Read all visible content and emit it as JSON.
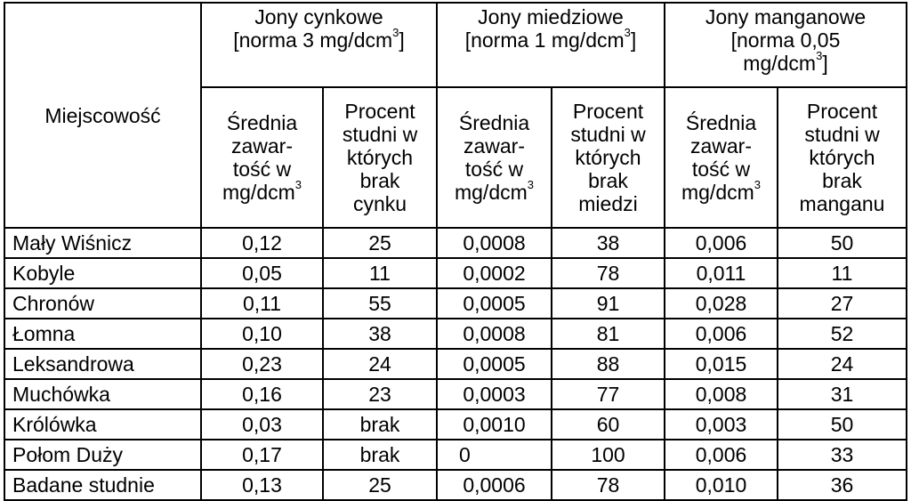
{
  "table": {
    "corner_header": "Miejscowość",
    "groups": [
      {
        "lines": [
          {
            "text": "Jony cynkowe"
          },
          {
            "text": "[norma 3 mg/dcm",
            "sup": "3",
            "after": "]"
          }
        ]
      },
      {
        "lines": [
          {
            "text": "Jony miedziowe"
          },
          {
            "text": "[norma 1 mg/dcm",
            "sup": "3",
            "after": "]"
          }
        ]
      },
      {
        "lines": [
          {
            "text": "Jony manganowe"
          },
          {
            "text": "[norma 0,05"
          },
          {
            "text": "mg/dcm",
            "sup": "3",
            "after": "]"
          }
        ]
      }
    ],
    "subheaders": [
      {
        "lines": [
          {
            "text": "Średnia"
          },
          {
            "text": "zawar-"
          },
          {
            "text": "tość w"
          },
          {
            "text": "mg/dcm",
            "sup": "3"
          }
        ]
      },
      {
        "lines": [
          {
            "text": "Procent"
          },
          {
            "text": "studni w"
          },
          {
            "text": "których"
          },
          {
            "text": "brak"
          },
          {
            "text": "cynku"
          }
        ]
      },
      {
        "lines": [
          {
            "text": "Średnia"
          },
          {
            "text": "zawar-"
          },
          {
            "text": "tość w"
          },
          {
            "text": "mg/dcm",
            "sup": "3"
          }
        ]
      },
      {
        "lines": [
          {
            "text": "Procent"
          },
          {
            "text": "studni w"
          },
          {
            "text": "których"
          },
          {
            "text": "brak"
          },
          {
            "text": "miedzi"
          }
        ]
      },
      {
        "lines": [
          {
            "text": "Średnia"
          },
          {
            "text": "zawar-"
          },
          {
            "text": "tość w"
          },
          {
            "text": "mg/dcm",
            "sup": "3"
          }
        ]
      },
      {
        "lines": [
          {
            "text": "Procent"
          },
          {
            "text": "studni w"
          },
          {
            "text": "których"
          },
          {
            "text": "brak"
          },
          {
            "text": "manganu"
          }
        ]
      }
    ],
    "rows": [
      [
        "Mały Wiśnicz",
        "0,12",
        "25",
        "0,0008",
        "38",
        "0,006",
        "50"
      ],
      [
        "Kobyle",
        "0,05",
        "11",
        "0,0002",
        "78",
        "0,011",
        "11"
      ],
      [
        "Chronów",
        "0,11",
        "55",
        "0,0005",
        "91",
        "0,028",
        "27"
      ],
      [
        "Łomna",
        "0,10",
        "38",
        "0,0008",
        "81",
        "0,006",
        "52"
      ],
      [
        "Leksandrowa",
        "0,23",
        "24",
        "0,0005",
        "88",
        "0,015",
        "24"
      ],
      [
        "Muchówka",
        "0,16",
        "23",
        "0,0003",
        "77",
        "0,008",
        "31"
      ],
      [
        "Królówka",
        "0,03",
        "brak",
        "0,0010",
        "60",
        "0,003",
        "50"
      ],
      [
        "Połom Duży",
        "0,17",
        "brak",
        "0",
        "100",
        "0,006",
        "33"
      ],
      [
        "Badane studnie",
        "0,13",
        "25",
        "0,0006",
        "78",
        "0,010",
        "36"
      ]
    ]
  }
}
